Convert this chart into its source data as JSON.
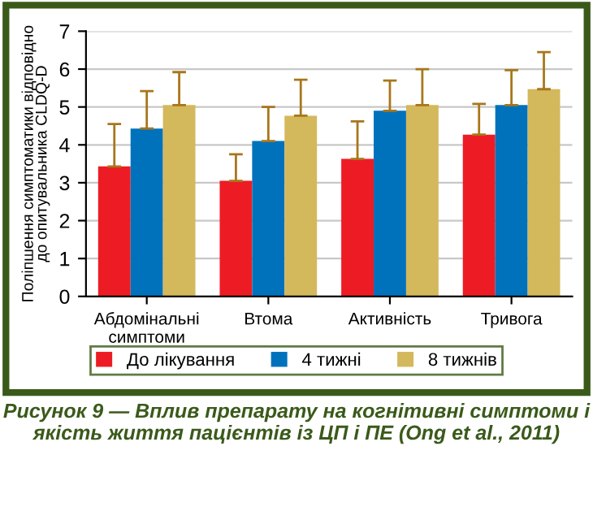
{
  "chart_data": {
    "type": "bar",
    "title": "Рисунок 9 — Вплив препарату на когнітивні симптоми і якість життя пацієнтів із ЦП і ПЕ (Ong et al., 2011)",
    "ylabel": "Поліпшення симптоматики відповідно до опитувальника CLDQ-D",
    "categories": [
      "Абдомінальні\nсимптоми",
      "Втома",
      "Активність",
      "Тривога"
    ],
    "series": [
      {
        "name": "До лікування",
        "color": "#ed1c24",
        "values": [
          3.43,
          3.05,
          3.63,
          4.27
        ],
        "errors": [
          [
            3.43,
            4.55
          ],
          [
            3.05,
            3.75
          ],
          [
            3.63,
            4.62
          ],
          [
            4.27,
            5.08
          ]
        ]
      },
      {
        "name": "4 тижні",
        "color": "#0072bc",
        "values": [
          4.43,
          4.1,
          4.9,
          5.05
        ],
        "errors": [
          [
            4.43,
            5.42
          ],
          [
            4.1,
            5.0
          ],
          [
            4.9,
            5.7
          ],
          [
            5.05,
            5.97
          ]
        ]
      },
      {
        "name": "8 тижнів",
        "color": "#d4b85c",
        "values": [
          5.05,
          4.77,
          5.05,
          5.47
        ],
        "errors": [
          [
            5.05,
            5.92
          ],
          [
            4.77,
            5.72
          ],
          [
            5.05,
            6.0
          ],
          [
            5.47,
            6.45
          ]
        ]
      }
    ],
    "ylim": [
      0,
      7
    ],
    "yticks": [
      0,
      1,
      2,
      3,
      4,
      5,
      6,
      7
    ],
    "grid": "y",
    "legend": "bottom"
  }
}
